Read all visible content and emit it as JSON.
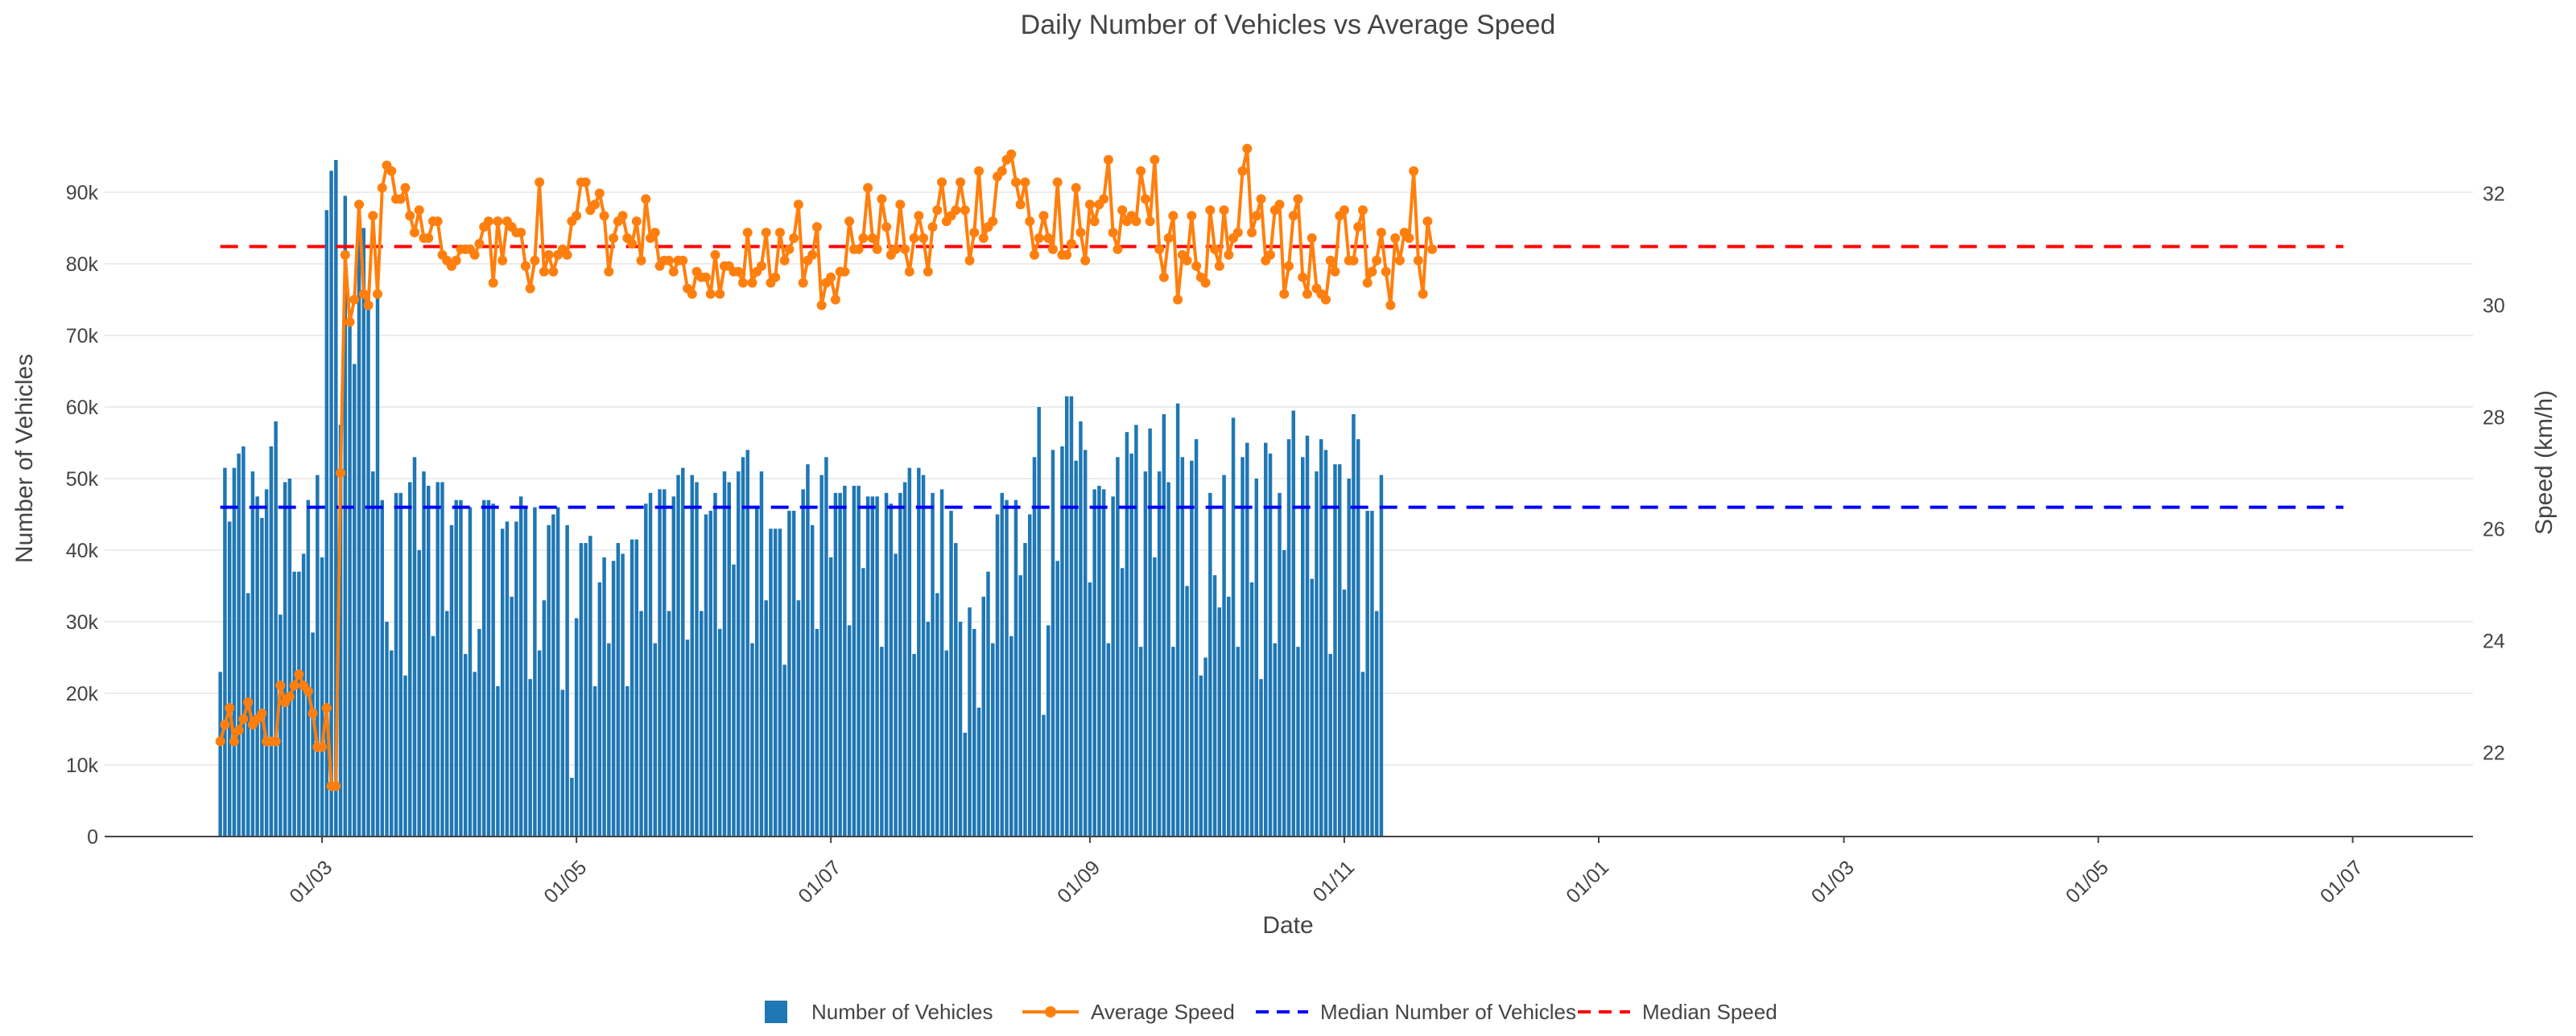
{
  "chart_data": {
    "type": "bar+line",
    "title": "Daily Number of Vehicles vs Average Speed",
    "xlabel": "Date",
    "ylabel": "Number of Vehicles",
    "y2label": "Speed (km/h)",
    "ylim": [
      0,
      100000
    ],
    "y2lim": [
      20.5,
      33.3
    ],
    "y_ticks": [
      0,
      10000,
      20000,
      30000,
      40000,
      50000,
      60000,
      70000,
      80000,
      90000
    ],
    "y_tick_labels": [
      "0",
      "10k",
      "20k",
      "30k",
      "40k",
      "50k",
      "60k",
      "70k",
      "80k",
      "90k"
    ],
    "y2_ticks": [
      22,
      24,
      26,
      28,
      30,
      32
    ],
    "y2_tick_labels": [
      "22",
      "24",
      "26",
      "28",
      "30",
      "32"
    ],
    "x_tick_labels": [
      "01/03",
      "01/05",
      "01/07",
      "01/09",
      "01/11",
      "01/01",
      "01/03",
      "01/05",
      "01/07"
    ],
    "x_tick_days": [
      22,
      77,
      132,
      188,
      243,
      298,
      351,
      406,
      461
    ],
    "x_range_days": [
      -25,
      487
    ],
    "start_day": 0,
    "num_days": 460,
    "series": [
      {
        "name": "Number of Vehicles",
        "type": "bar",
        "color": "#1f77b4",
        "values": [
          23000,
          51500,
          44000,
          51500,
          53500,
          54500,
          34000,
          51000,
          47500,
          44500,
          48500,
          54500,
          58000,
          31000,
          49500,
          50000,
          37000,
          37000,
          39500,
          47000,
          28500,
          50500,
          39000,
          87500,
          93000,
          94500,
          57500,
          89500,
          72500,
          66000,
          87500,
          85000,
          75500,
          51000,
          80000,
          47000,
          30000,
          26000,
          48000,
          48000,
          22500,
          49500,
          53000,
          40000,
          51000,
          49000,
          28000,
          49500,
          49500,
          31500,
          43500,
          47000,
          47000,
          25500,
          46000,
          23000,
          29000,
          47000,
          47000,
          46500,
          21000,
          43000,
          44000,
          33500,
          44000,
          47500,
          46000,
          22000,
          46000,
          26000,
          33000,
          43500,
          45000,
          46000,
          20500,
          43500,
          8200,
          30500,
          41000,
          41000,
          42000,
          21000,
          35500,
          39000,
          27000,
          38500,
          41000,
          39500,
          21000,
          41500,
          41500,
          31500,
          46500,
          48000,
          27000,
          48500,
          48500,
          31500,
          47500,
          50500,
          51500,
          27500,
          50500,
          49500,
          31500,
          45000,
          45500,
          48000,
          29000,
          51000,
          49500,
          38000,
          51000,
          53000,
          54000,
          27000,
          46000,
          51000,
          33000,
          43000,
          43000,
          43000,
          24000,
          45500,
          45500,
          33000,
          48500,
          52000,
          43500,
          29000,
          50500,
          53000,
          39000,
          48000,
          48000,
          49000,
          29500,
          49000,
          49000,
          37500,
          47500,
          47500,
          47500,
          26500,
          48000,
          46500,
          39500,
          48000,
          49500,
          51500,
          25500,
          51500,
          50500,
          30000,
          48000,
          34000,
          48500,
          26000,
          45500,
          41000,
          30000,
          14500,
          32000,
          29000,
          18000,
          33500,
          37000,
          27000,
          45000,
          48000,
          47000,
          28000,
          47000,
          36500,
          41000,
          45000,
          53000,
          60000,
          17000,
          29500,
          54000,
          38500,
          54500,
          61500,
          61500,
          52500,
          58000,
          54000,
          35500,
          48500,
          49000,
          48500,
          27000,
          47500,
          53000,
          37500,
          56500,
          53500,
          57500,
          26500,
          51000,
          57000,
          39000,
          51000,
          59000,
          49500,
          26500,
          60500,
          53000,
          35000,
          52500,
          55500,
          22500,
          25000,
          48000,
          36500,
          32000,
          50500,
          33500,
          58500,
          26500,
          53000,
          55000,
          35500,
          50000,
          22000,
          55000,
          53500,
          27000,
          48000,
          40000,
          55500,
          59500,
          26500,
          53000,
          56000,
          36000,
          51000,
          55500,
          54000,
          25500,
          52000,
          52000,
          34500,
          50000,
          59000,
          55500,
          23000,
          45500,
          45500,
          31500,
          50500
        ]
      },
      {
        "name": "Average Speed",
        "type": "line",
        "color": "#ff7f0e",
        "values": [
          22.2,
          22.5,
          22.8,
          22.2,
          22.4,
          22.6,
          22.9,
          22.5,
          22.6,
          22.7,
          22.2,
          22.2,
          22.2,
          23.2,
          22.9,
          23.0,
          23.2,
          23.4,
          23.2,
          23.1,
          22.7,
          22.1,
          22.1,
          22.8,
          21.4,
          21.4,
          27.0,
          30.9,
          29.7,
          30.1,
          31.8,
          30.2,
          30.0,
          31.6,
          30.2,
          32.1,
          32.5,
          32.4,
          31.9,
          31.9,
          32.1,
          31.6,
          31.3,
          31.7,
          31.2,
          31.2,
          31.5,
          31.5,
          30.9,
          30.8,
          30.7,
          30.8,
          31.0,
          31.0,
          31.0,
          30.9,
          31.1,
          31.4,
          31.5,
          30.4,
          31.5,
          30.8,
          31.5,
          31.4,
          31.3,
          31.3,
          30.7,
          30.3,
          30.8,
          32.2,
          30.6,
          30.9,
          30.6,
          30.9,
          31.0,
          30.9,
          31.5,
          31.6,
          32.2,
          32.2,
          31.7,
          31.8,
          32.0,
          31.6,
          30.6,
          31.2,
          31.5,
          31.6,
          31.2,
          31.1,
          31.5,
          30.8,
          31.9,
          31.2,
          31.3,
          30.7,
          30.8,
          30.8,
          30.6,
          30.8,
          30.8,
          30.3,
          30.2,
          30.6,
          30.5,
          30.5,
          30.2,
          30.9,
          30.2,
          30.7,
          30.7,
          30.6,
          30.6,
          30.4,
          31.3,
          30.4,
          30.6,
          30.7,
          31.3,
          30.4,
          30.5,
          31.3,
          30.8,
          31.0,
          31.2,
          31.8,
          30.4,
          30.8,
          30.9,
          31.4,
          30.0,
          30.4,
          30.5,
          30.1,
          30.6,
          30.6,
          31.5,
          31.0,
          31.0,
          31.2,
          32.1,
          31.2,
          31.0,
          31.9,
          31.4,
          30.9,
          31.0,
          31.8,
          31.0,
          30.6,
          31.2,
          31.6,
          31.2,
          30.6,
          31.4,
          31.7,
          32.2,
          31.5,
          31.6,
          31.7,
          32.2,
          31.7,
          30.8,
          31.3,
          32.4,
          31.2,
          31.4,
          31.5,
          32.3,
          32.4,
          32.6,
          32.7,
          32.2,
          31.8,
          32.2,
          31.5,
          30.9,
          31.2,
          31.6,
          31.2,
          31.0,
          32.2,
          30.9,
          30.9,
          31.1,
          32.1,
          31.3,
          30.8,
          31.8,
          31.5,
          31.8,
          31.9,
          32.6,
          31.3,
          31.0,
          31.7,
          31.5,
          31.6,
          31.5,
          32.4,
          31.9,
          31.5,
          32.6,
          31.0,
          30.5,
          31.2,
          31.6,
          30.1,
          30.9,
          30.8,
          31.6,
          30.7,
          30.5,
          30.4,
          31.7,
          31.0,
          30.7,
          31.7,
          30.9,
          31.2,
          31.3,
          32.4,
          32.8,
          31.3,
          31.6,
          31.9,
          30.8,
          30.9,
          31.7,
          31.8,
          30.2,
          30.7,
          31.6,
          31.9,
          30.5,
          30.2,
          31.2,
          30.3,
          30.2,
          30.1,
          30.8,
          30.6,
          31.6,
          31.7,
          30.8,
          30.8,
          31.4,
          31.7,
          30.4,
          30.6,
          30.8,
          31.3,
          30.6,
          30.0,
          31.2,
          30.8,
          31.3,
          31.2,
          32.4,
          30.8,
          30.2,
          31.5,
          31.0
        ]
      },
      {
        "name": "Median Number of Vehicles",
        "type": "hline",
        "color": "#0000ff",
        "value": 46000,
        "dash": "dashed"
      },
      {
        "name": "Median Speed",
        "type": "hline",
        "color": "#ff0000",
        "value": 31.05,
        "dash": "dashed"
      }
    ],
    "legend": [
      "Number of Vehicles",
      "Average Speed",
      "Median Number of Vehicles",
      "Median Speed"
    ],
    "legend_position": "bottom-center",
    "grid": true
  }
}
